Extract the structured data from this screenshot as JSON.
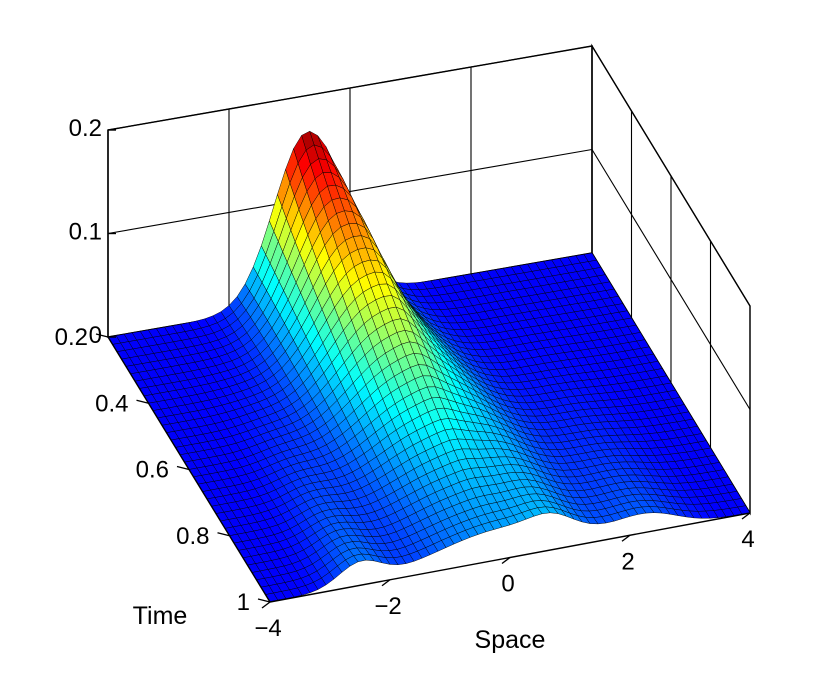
{
  "chart_data": {
    "type": "surface",
    "title": "",
    "xlabel": "Space",
    "ylabel": "Time",
    "zlabel": "",
    "xlim": [
      -4,
      4
    ],
    "ylim": [
      0.2,
      1
    ],
    "zlim": [
      0,
      0.2
    ],
    "x_ticks": [
      -4,
      -2,
      0,
      2,
      4
    ],
    "x_tick_labels": [
      "−4",
      "−2",
      "0",
      "2",
      "4"
    ],
    "y_ticks": [
      0.2,
      0.4,
      0.6,
      0.8,
      1
    ],
    "y_tick_labels": [
      "0.2",
      "0.4",
      "0.6",
      "0.8",
      "1"
    ],
    "z_ticks": [
      0,
      0.1,
      0.2
    ],
    "z_tick_labels": [
      "0",
      "0.1",
      "0.2"
    ],
    "grid": true,
    "colormap": "jet",
    "peak": {
      "x": -0.7,
      "y": 0.2,
      "z": 0.165
    },
    "profiles": [
      {
        "time": 0.2,
        "amplitude": 0.165,
        "center": -0.7,
        "width": 0.55
      },
      {
        "time": 0.6,
        "amplitude": 0.06,
        "center": -0.3,
        "width": 0.75,
        "secondary_peaks": [
          -1.8,
          1.2
        ]
      },
      {
        "time": 1,
        "amplitude": 0.035,
        "center": -0.1,
        "width": 1.0,
        "secondary_peaks": [
          -3,
          0.5,
          2.8
        ]
      }
    ]
  }
}
